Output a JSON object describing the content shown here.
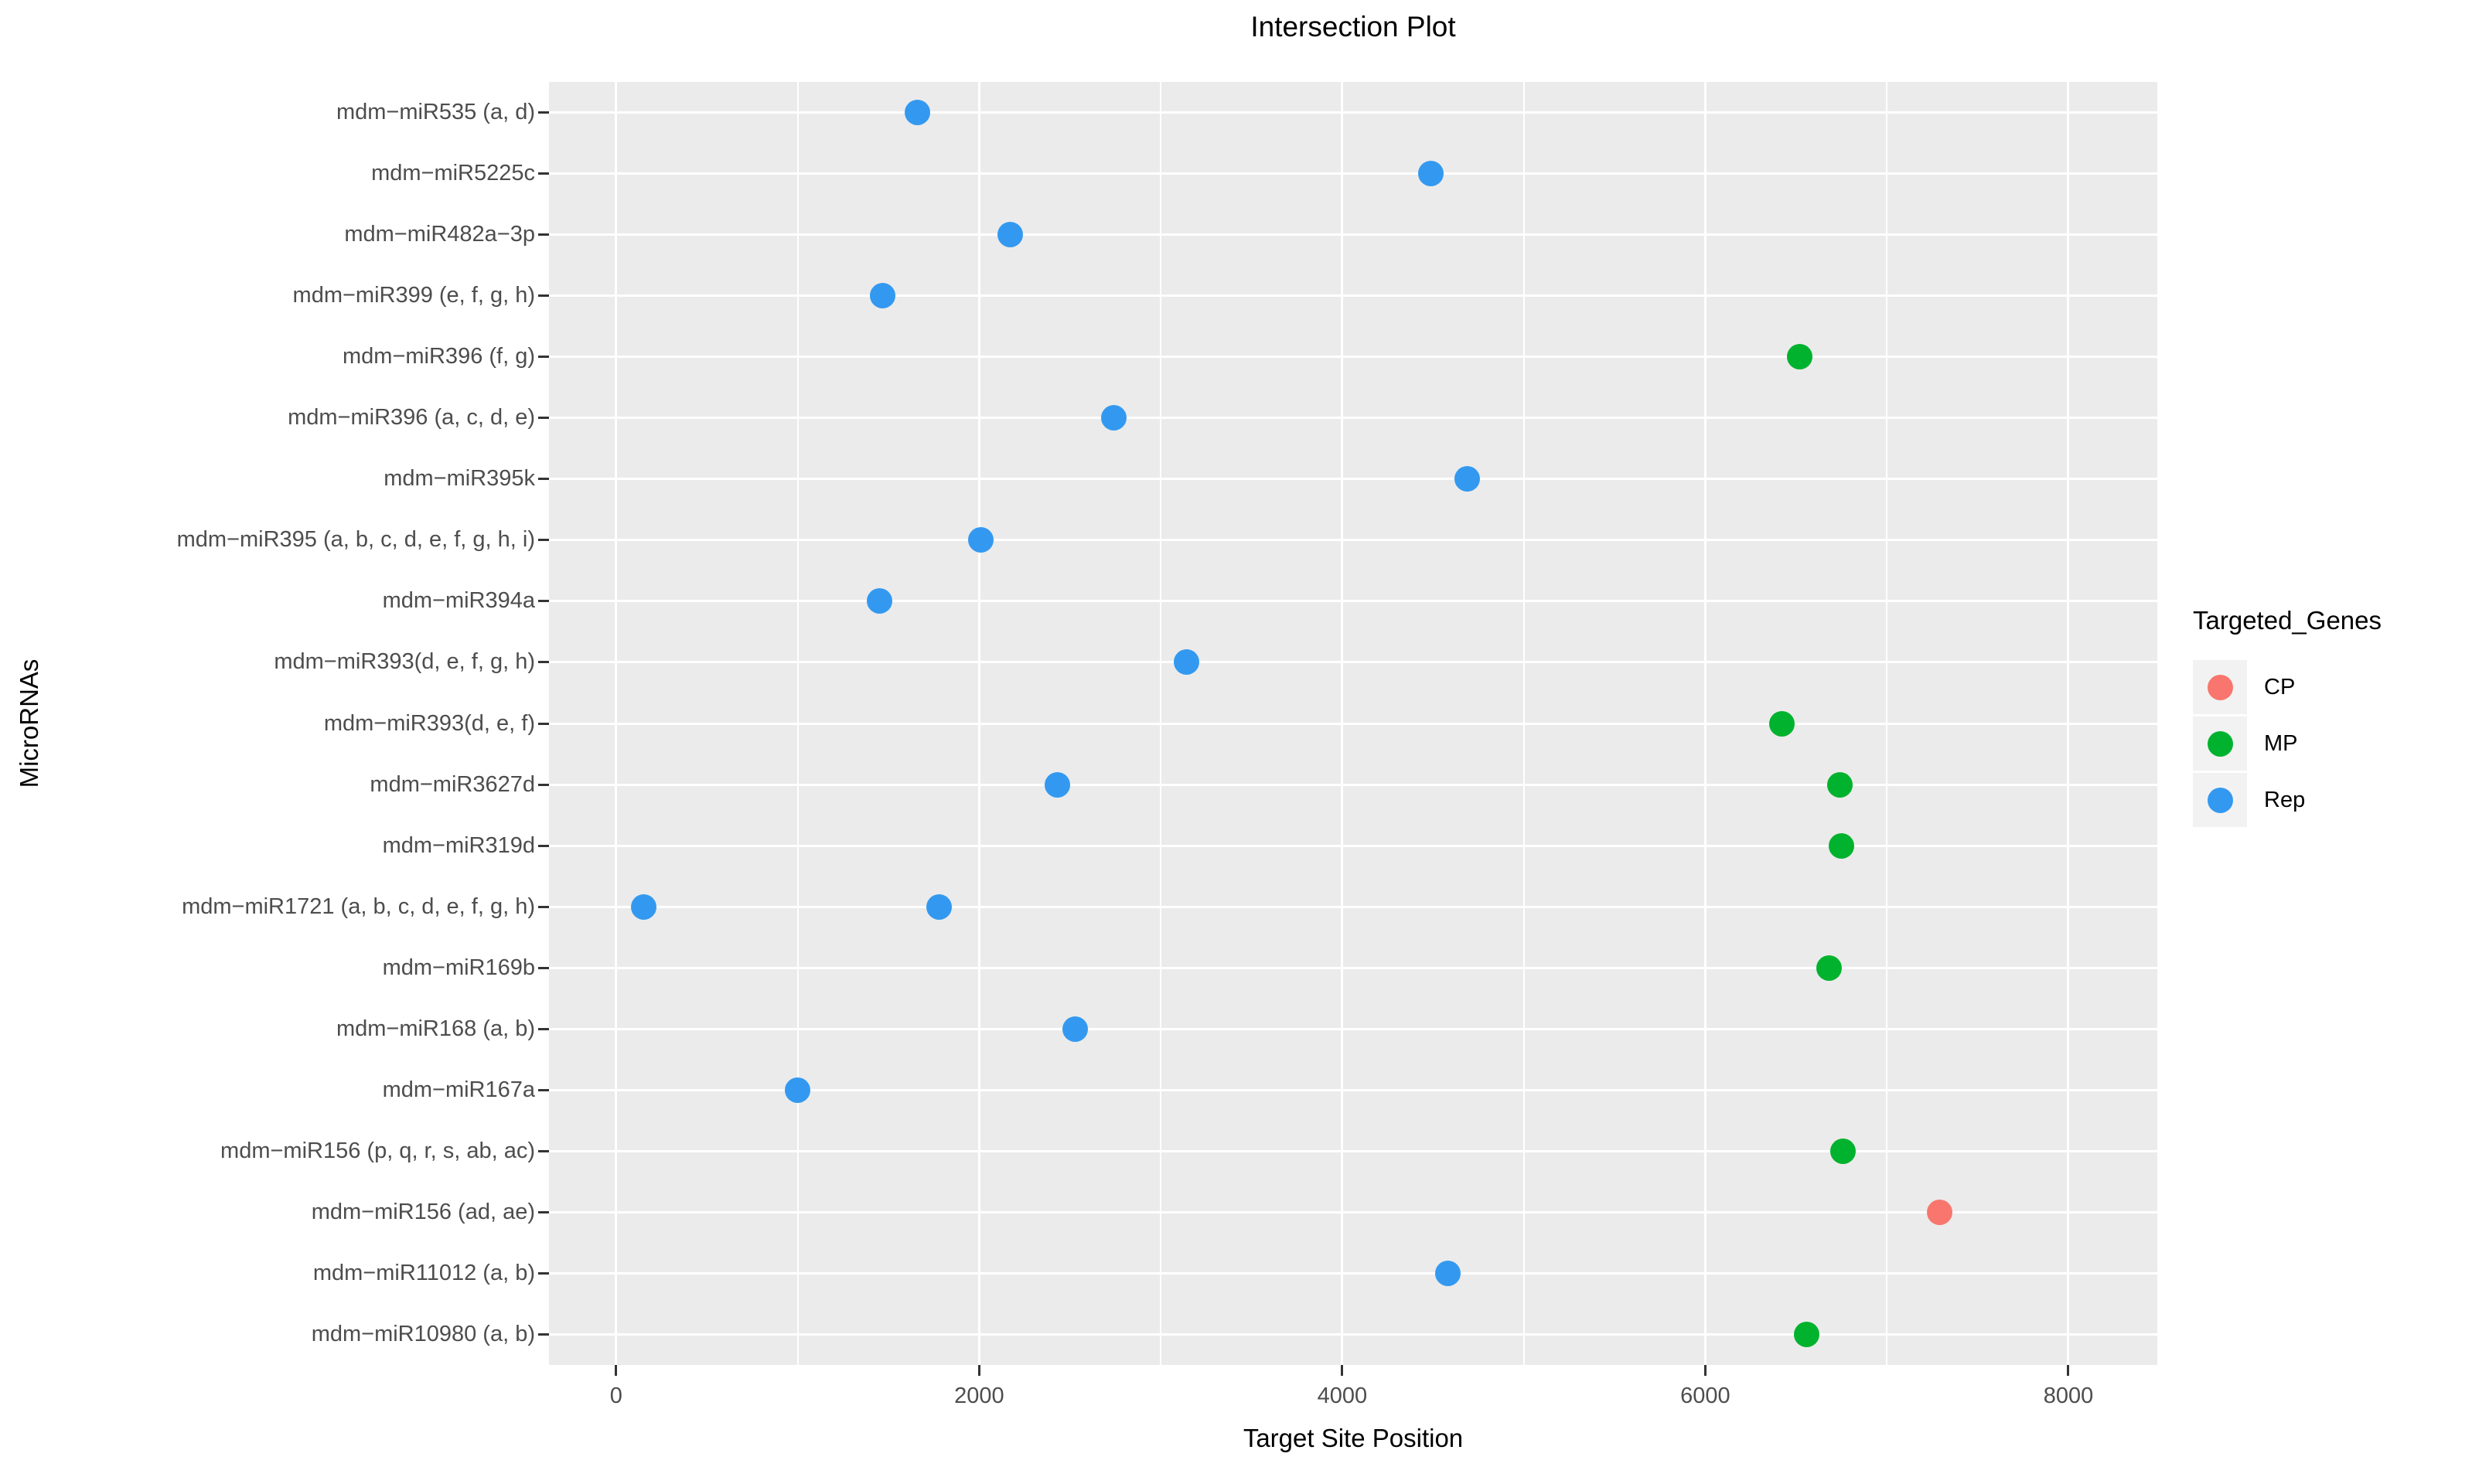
{
  "chart_data": {
    "type": "scatter",
    "title": "Intersection Plot",
    "xlabel": "Target Site Position",
    "ylabel": "MicroRNAs",
    "xlim": [
      -370,
      8490
    ],
    "x_ticks": [
      0,
      2000,
      4000,
      6000,
      8000
    ],
    "x_minor_ticks": [
      1000,
      3000,
      5000,
      7000
    ],
    "grid": true,
    "panel_bg": "#EBEBEB",
    "grid_color": "#FFFFFF",
    "axis_text_color": "#4D4D4D",
    "tick_color": "#333333",
    "legend": {
      "title": "Targeted_Genes",
      "position": "right",
      "entries": [
        {
          "label": "CP",
          "color": "#F8766D"
        },
        {
          "label": "MP",
          "color": "#00B22D"
        },
        {
          "label": "Rep",
          "color": "#3399F0"
        }
      ]
    },
    "categories": [
      "mdm−miR535 (a, d)",
      "mdm−miR5225c",
      "mdm−miR482a−3p",
      "mdm−miR399 (e, f, g, h)",
      "mdm−miR396 (f, g)",
      "mdm−miR396 (a, c, d, e)",
      "mdm−miR395k",
      "mdm−miR395 (a, b, c, d, e, f, g, h, i)",
      "mdm−miR394a",
      "mdm−miR393(d, e, f, g, h)",
      "mdm−miR393(d, e, f)",
      "mdm−miR3627d",
      "mdm−miR319d",
      "mdm−miR1721 (a, b, c, d, e, f, g, h)",
      "mdm−miR169b",
      "mdm−miR168 (a, b)",
      "mdm−miR167a",
      "mdm−miR156 (p, q, r, s, ab, ac)",
      "mdm−miR156 (ad, ae)",
      "mdm−miR11012 (a, b)",
      "mdm−miR10980 (a, b)"
    ],
    "points": [
      {
        "miRNA": "mdm−miR535 (a, d)",
        "x": 1660,
        "group": "Rep"
      },
      {
        "miRNA": "mdm−miR5225c",
        "x": 4490,
        "group": "Rep"
      },
      {
        "miRNA": "mdm−miR482a−3p",
        "x": 2170,
        "group": "Rep"
      },
      {
        "miRNA": "mdm−miR399 (e, f, g, h)",
        "x": 1470,
        "group": "Rep"
      },
      {
        "miRNA": "mdm−miR396 (f, g)",
        "x": 6520,
        "group": "MP"
      },
      {
        "miRNA": "mdm−miR396 (a, c, d, e)",
        "x": 2740,
        "group": "Rep"
      },
      {
        "miRNA": "mdm−miR395k",
        "x": 4690,
        "group": "Rep"
      },
      {
        "miRNA": "mdm−miR395 (a, b, c, d, e, f, g, h, i)",
        "x": 2010,
        "group": "Rep"
      },
      {
        "miRNA": "mdm−miR394a",
        "x": 1450,
        "group": "Rep"
      },
      {
        "miRNA": "mdm−miR393(d, e, f, g, h)",
        "x": 3140,
        "group": "Rep"
      },
      {
        "miRNA": "mdm−miR393(d, e, f)",
        "x": 6420,
        "group": "MP"
      },
      {
        "miRNA": "mdm−miR3627d",
        "x": 2430,
        "group": "Rep"
      },
      {
        "miRNA": "mdm−miR3627d",
        "x": 6740,
        "group": "MP"
      },
      {
        "miRNA": "mdm−miR319d",
        "x": 6750,
        "group": "MP"
      },
      {
        "miRNA": "mdm−miR1721 (a, b, c, d, e, f, g, h)",
        "x": 150,
        "group": "Rep"
      },
      {
        "miRNA": "mdm−miR1721 (a, b, c, d, e, f, g, h)",
        "x": 1780,
        "group": "Rep"
      },
      {
        "miRNA": "mdm−miR169b",
        "x": 6680,
        "group": "MP"
      },
      {
        "miRNA": "mdm−miR168 (a, b)",
        "x": 2530,
        "group": "Rep"
      },
      {
        "miRNA": "mdm−miR167a",
        "x": 1000,
        "group": "Rep"
      },
      {
        "miRNA": "mdm−miR156 (p, q, r, s, ab, ac)",
        "x": 6760,
        "group": "MP"
      },
      {
        "miRNA": "mdm−miR156 (ad, ae)",
        "x": 7290,
        "group": "CP"
      },
      {
        "miRNA": "mdm−miR11012 (a, b)",
        "x": 4580,
        "group": "Rep"
      },
      {
        "miRNA": "mdm−miR10980 (a, b)",
        "x": 6560,
        "group": "MP"
      }
    ]
  }
}
